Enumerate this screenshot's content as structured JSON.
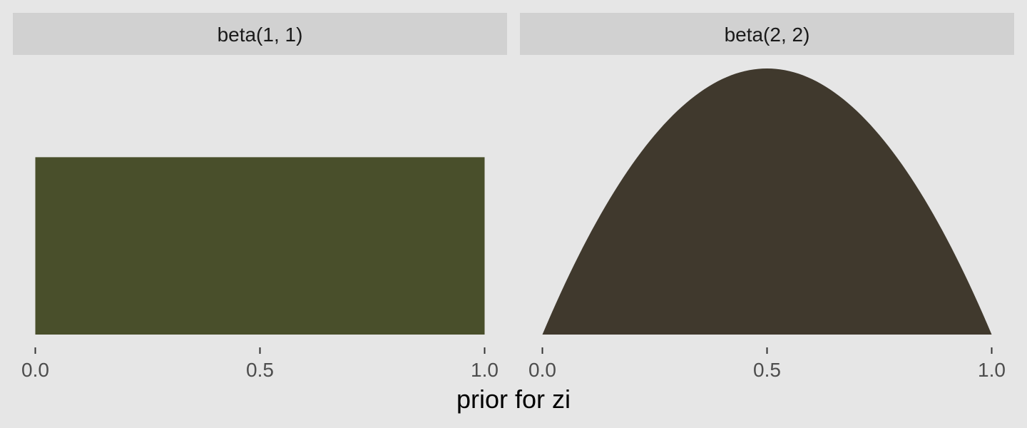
{
  "chart_data": {
    "type": "area",
    "xlabel": "prior for zi",
    "ylabel": "",
    "grid": false,
    "legend": "none",
    "shared_ylim": [
      0,
      1.5
    ],
    "panels": [
      {
        "strip_label": "beta(1, 1)",
        "fill_color": "#494f2b",
        "alpha": 1,
        "beta": 1,
        "xlim": [
          0,
          1
        ],
        "x_ticks": [
          0,
          0.5,
          1
        ],
        "x_tick_labels": [
          "0.0",
          "0.5",
          "1.0"
        ],
        "x": [
          0,
          0.1,
          0.2,
          0.3,
          0.4,
          0.5,
          0.6,
          0.7,
          0.8,
          0.9,
          1.0
        ],
        "y": [
          1,
          1,
          1,
          1,
          1,
          1,
          1,
          1,
          1,
          1,
          1
        ]
      },
      {
        "strip_label": "beta(2, 2)",
        "fill_color": "#40392d",
        "alpha": 2,
        "beta": 2,
        "xlim": [
          0,
          1
        ],
        "x_ticks": [
          0,
          0.5,
          1
        ],
        "x_tick_labels": [
          "0.0",
          "0.5",
          "1.0"
        ],
        "x": [
          0,
          0.05,
          0.1,
          0.15,
          0.2,
          0.25,
          0.3,
          0.35,
          0.4,
          0.45,
          0.5,
          0.55,
          0.6,
          0.65,
          0.7,
          0.75,
          0.8,
          0.85,
          0.9,
          0.95,
          1.0
        ],
        "y": [
          0,
          0.285,
          0.54,
          0.765,
          0.96,
          1.125,
          1.26,
          1.365,
          1.44,
          1.485,
          1.5,
          1.485,
          1.44,
          1.365,
          1.26,
          1.125,
          0.96,
          0.765,
          0.54,
          0.285,
          0
        ]
      }
    ]
  }
}
